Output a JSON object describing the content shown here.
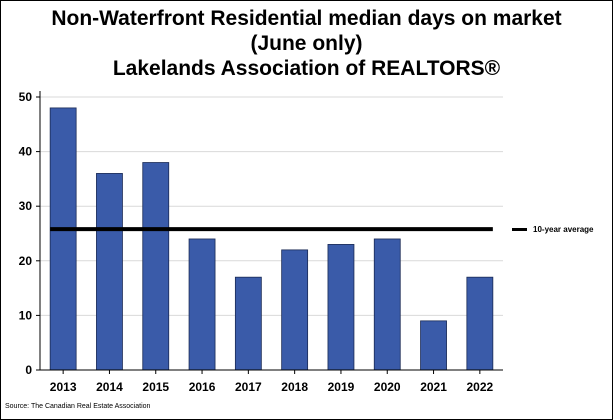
{
  "chart_data": {
    "type": "bar",
    "title_lines": [
      "Non-Waterfront Residential median days on market",
      "(June only)",
      "Lakelands Association of REALTORS®"
    ],
    "categories": [
      "2013",
      "2014",
      "2015",
      "2016",
      "2017",
      "2018",
      "2019",
      "2020",
      "2021",
      "2022"
    ],
    "values": [
      48,
      36,
      38,
      24,
      17,
      22,
      23,
      24,
      9,
      17
    ],
    "yticks": [
      "0",
      "10",
      "20",
      "30",
      "40",
      "50"
    ],
    "ylim": [
      0,
      50
    ],
    "reference_line": {
      "name": "10-year average",
      "value": 25.8
    },
    "legend_label": "10-year average",
    "legend_position": "right",
    "grid": true,
    "xlabel": "",
    "ylabel": "",
    "source": "Source: The Canadian Real Estate Association"
  },
  "colors": {
    "bar": "#3a5ba9",
    "bar_edge": "#1a2a55",
    "average_line": "#000000",
    "grid": "#d9d9d9"
  }
}
